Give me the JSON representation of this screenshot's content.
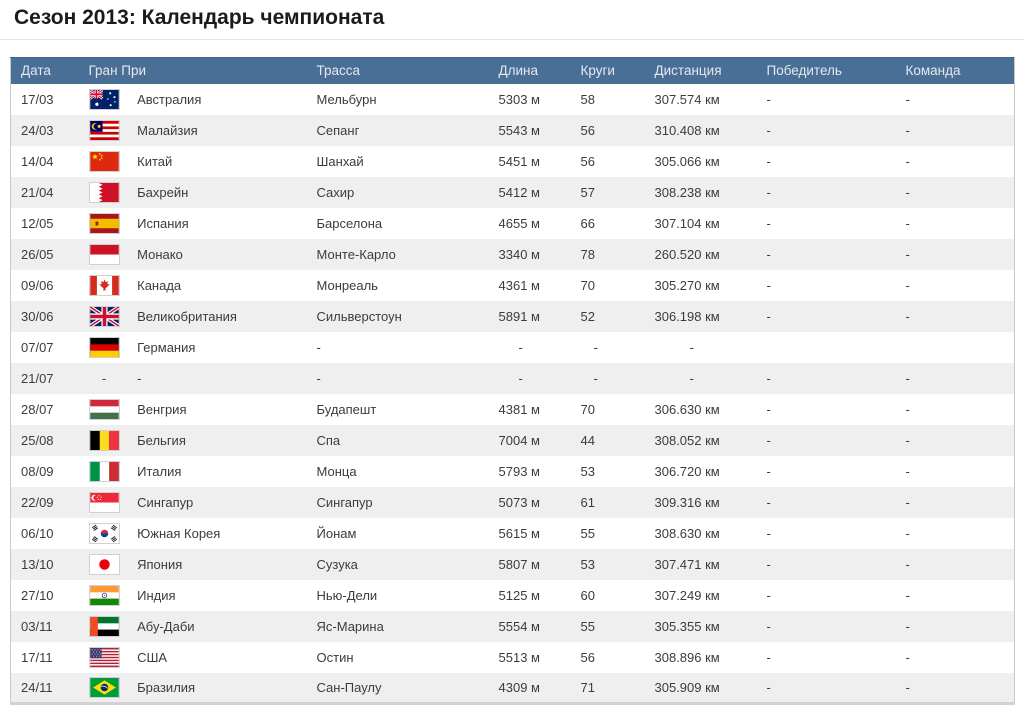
{
  "page": {
    "title": "Сезон 2013: Календарь чемпионата"
  },
  "table": {
    "columns": [
      "Дата",
      "Гран При",
      "Трасса",
      "Длина",
      "Круги",
      "Дистанция",
      "Победитель",
      "Команда"
    ],
    "colors": {
      "header_bg": "#4a6f96",
      "header_text": "#e4e9ef",
      "row_alt_bg": "#efefef",
      "border": "#c9c9c9",
      "text": "#3c3c3c"
    },
    "rows": [
      {
        "date": "17/03",
        "flag": "australia-flag-icon",
        "gp": "Австралия",
        "track": "Мельбурн",
        "length": "5303 м",
        "laps": "58",
        "distance": "307.574 км",
        "winner": "-",
        "team": "-"
      },
      {
        "date": "24/03",
        "flag": "malaysia-flag-icon",
        "gp": "Малайзия",
        "track": "Сепанг",
        "length": "5543 м",
        "laps": "56",
        "distance": "310.408 км",
        "winner": "-",
        "team": "-"
      },
      {
        "date": "14/04",
        "flag": "china-flag-icon",
        "gp": "Китай",
        "track": "Шанхай",
        "length": "5451 м",
        "laps": "56",
        "distance": "305.066 км",
        "winner": "-",
        "team": "-"
      },
      {
        "date": "21/04",
        "flag": "bahrain-flag-icon",
        "gp": "Бахрейн",
        "track": "Сахир",
        "length": "5412 м",
        "laps": "57",
        "distance": "308.238 км",
        "winner": "-",
        "team": "-"
      },
      {
        "date": "12/05",
        "flag": "spain-flag-icon",
        "gp": "Испания",
        "track": "Барселона",
        "length": "4655 м",
        "laps": "66",
        "distance": "307.104 км",
        "winner": "-",
        "team": "-"
      },
      {
        "date": "26/05",
        "flag": "monaco-flag-icon",
        "gp": "Монако",
        "track": "Монте-Карло",
        "length": "3340 м",
        "laps": "78",
        "distance": "260.520 км",
        "winner": "-",
        "team": "-"
      },
      {
        "date": "09/06",
        "flag": "canada-flag-icon",
        "gp": "Канада",
        "track": "Монреаль",
        "length": "4361 м",
        "laps": "70",
        "distance": "305.270 км",
        "winner": "-",
        "team": "-"
      },
      {
        "date": "30/06",
        "flag": "uk-flag-icon",
        "gp": "Великобритания",
        "track": "Сильверстоун",
        "length": "5891 м",
        "laps": "52",
        "distance": "306.198 км",
        "winner": "-",
        "team": "-"
      },
      {
        "date": "07/07",
        "flag": "germany-flag-icon",
        "gp": "Германия",
        "track": "-",
        "length": "-",
        "laps": "-",
        "distance": "-",
        "winner": "",
        "team": ""
      },
      {
        "date": "21/07",
        "flag": "",
        "flag_dash": "-",
        "gp": "-",
        "track": "-",
        "length": "-",
        "laps": "-",
        "distance": "-",
        "winner": "-",
        "team": "-"
      },
      {
        "date": "28/07",
        "flag": "hungary-flag-icon",
        "gp": "Венгрия",
        "track": "Будапешт",
        "length": "4381 м",
        "laps": "70",
        "distance": "306.630 км",
        "winner": "-",
        "team": "-"
      },
      {
        "date": "25/08",
        "flag": "belgium-flag-icon",
        "gp": "Бельгия",
        "track": "Спа",
        "length": "7004 м",
        "laps": "44",
        "distance": "308.052 км",
        "winner": "-",
        "team": "-"
      },
      {
        "date": "08/09",
        "flag": "italy-flag-icon",
        "gp": "Италия",
        "track": "Монца",
        "length": "5793 м",
        "laps": "53",
        "distance": "306.720 км",
        "winner": "-",
        "team": "-"
      },
      {
        "date": "22/09",
        "flag": "singapore-flag-icon",
        "gp": "Сингапур",
        "track": "Сингапур",
        "length": "5073 м",
        "laps": "61",
        "distance": "309.316 км",
        "winner": "-",
        "team": "-"
      },
      {
        "date": "06/10",
        "flag": "south-korea-flag-icon",
        "gp": "Южная Корея",
        "track": "Йонам",
        "length": "5615 м",
        "laps": "55",
        "distance": "308.630 км",
        "winner": "-",
        "team": "-"
      },
      {
        "date": "13/10",
        "flag": "japan-flag-icon",
        "gp": "Япония",
        "track": "Сузука",
        "length": "5807 м",
        "laps": "53",
        "distance": "307.471 км",
        "winner": "-",
        "team": "-"
      },
      {
        "date": "27/10",
        "flag": "india-flag-icon",
        "gp": "Индия",
        "track": "Нью-Дели",
        "length": "5125 м",
        "laps": "60",
        "distance": "307.249 км",
        "winner": "-",
        "team": "-"
      },
      {
        "date": "03/11",
        "flag": "uae-flag-icon",
        "gp": "Абу-Даби",
        "track": "Яс-Марина",
        "length": "5554 м",
        "laps": "55",
        "distance": "305.355 км",
        "winner": "-",
        "team": "-"
      },
      {
        "date": "17/11",
        "flag": "usa-flag-icon",
        "gp": "США",
        "track": "Остин",
        "length": "5513 м",
        "laps": "56",
        "distance": "308.896 км",
        "winner": "-",
        "team": "-"
      },
      {
        "date": "24/11",
        "flag": "brazil-flag-icon",
        "gp": "Бразилия",
        "track": "Сан-Паулу",
        "length": "4309 м",
        "laps": "71",
        "distance": "305.909 км",
        "winner": "-",
        "team": "-"
      }
    ]
  }
}
